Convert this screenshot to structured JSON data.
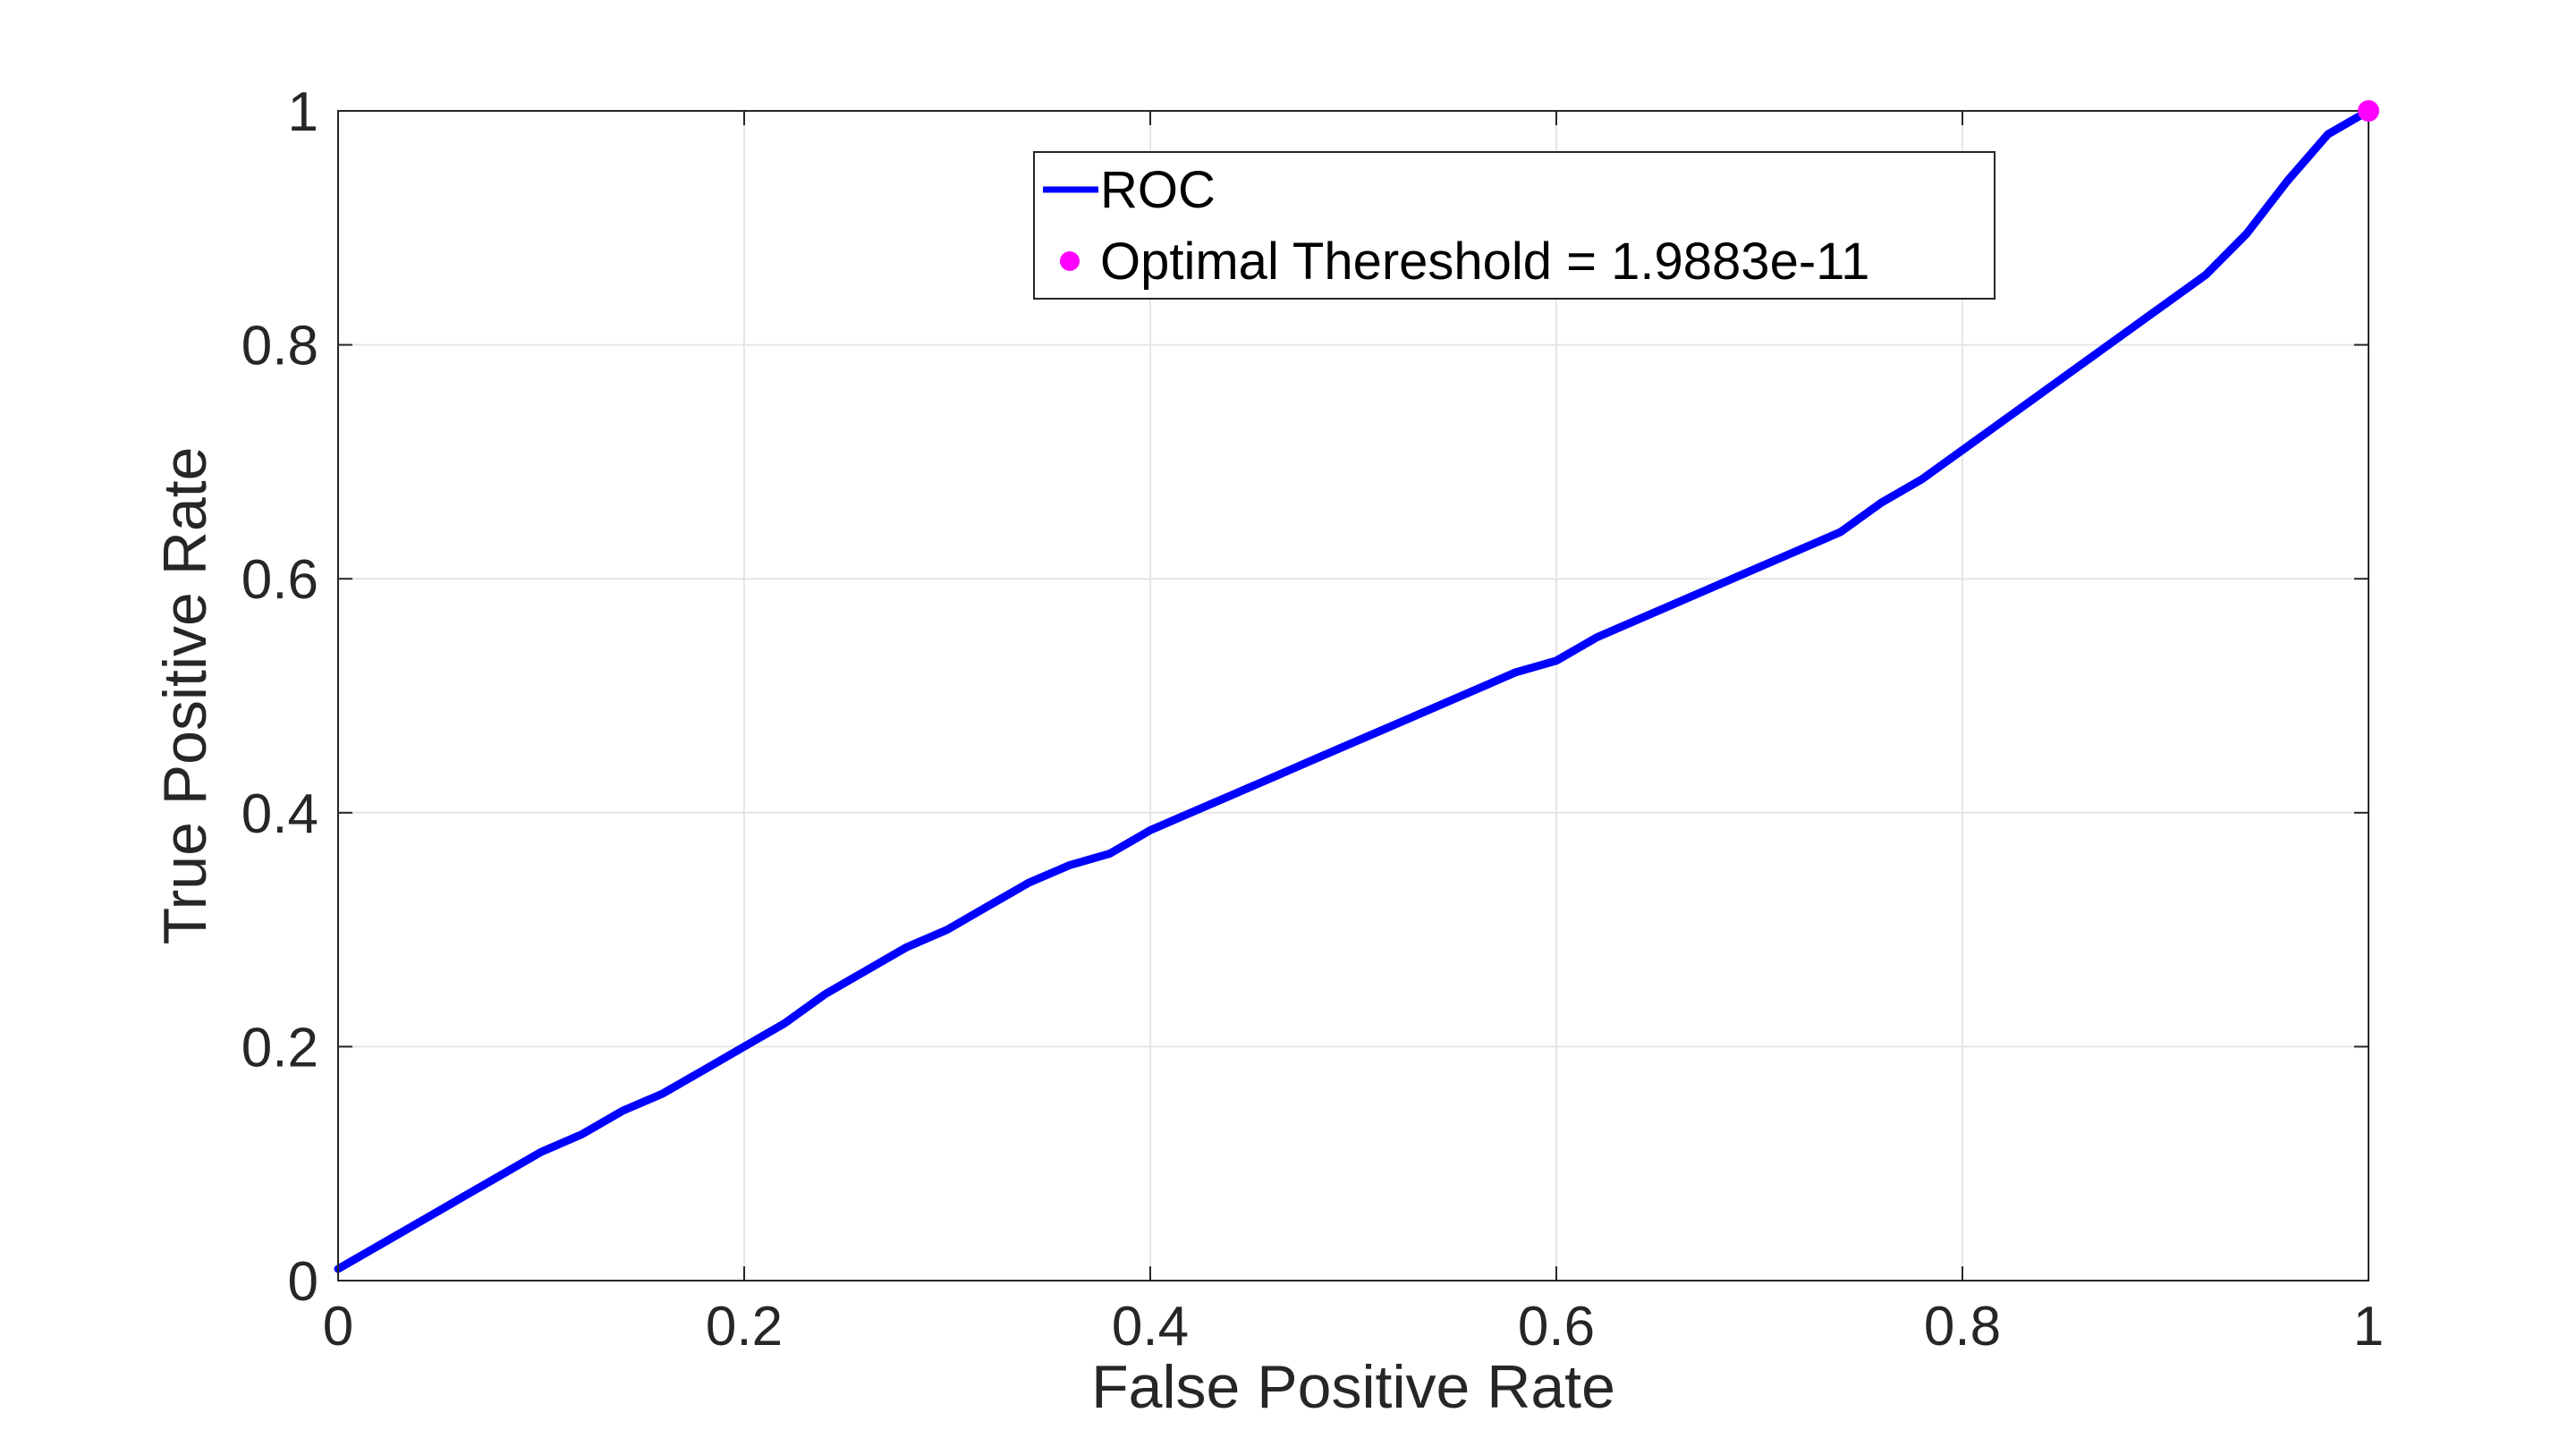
{
  "chart_data": {
    "type": "line",
    "title": "",
    "xlabel": "False Positive Rate",
    "ylabel": "True Positive Rate",
    "xlim": [
      0,
      1
    ],
    "ylim": [
      0,
      1
    ],
    "grid": true,
    "legend_position": "top-center",
    "x_ticks": [
      "0",
      "0.2",
      "0.4",
      "0.6",
      "0.8",
      "1"
    ],
    "y_ticks": [
      "0",
      "0.2",
      "0.4",
      "0.6",
      "0.8",
      "1"
    ],
    "series": [
      {
        "name": "ROC",
        "color": "#0000ff",
        "x": [
          0.0,
          0.02,
          0.04,
          0.06,
          0.08,
          0.1,
          0.12,
          0.14,
          0.16,
          0.18,
          0.2,
          0.22,
          0.24,
          0.26,
          0.28,
          0.3,
          0.32,
          0.34,
          0.36,
          0.38,
          0.4,
          0.42,
          0.44,
          0.46,
          0.48,
          0.5,
          0.52,
          0.54,
          0.56,
          0.58,
          0.6,
          0.62,
          0.64,
          0.66,
          0.68,
          0.7,
          0.72,
          0.74,
          0.76,
          0.78,
          0.8,
          0.82,
          0.84,
          0.86,
          0.88,
          0.9,
          0.92,
          0.94,
          0.96,
          0.98,
          1.0
        ],
        "y": [
          0.01,
          0.03,
          0.05,
          0.07,
          0.09,
          0.11,
          0.125,
          0.145,
          0.16,
          0.18,
          0.2,
          0.22,
          0.245,
          0.265,
          0.285,
          0.3,
          0.32,
          0.34,
          0.355,
          0.365,
          0.385,
          0.4,
          0.415,
          0.43,
          0.445,
          0.46,
          0.475,
          0.49,
          0.505,
          0.52,
          0.53,
          0.55,
          0.565,
          0.58,
          0.595,
          0.61,
          0.625,
          0.64,
          0.665,
          0.685,
          0.71,
          0.735,
          0.76,
          0.785,
          0.81,
          0.835,
          0.86,
          0.895,
          0.94,
          0.98,
          1.0
        ]
      }
    ],
    "markers": [
      {
        "name": "Optimal Thereshold = 1.9883e-11",
        "x": 1.0,
        "y": 1.0,
        "color": "#ff00ff"
      }
    ]
  }
}
